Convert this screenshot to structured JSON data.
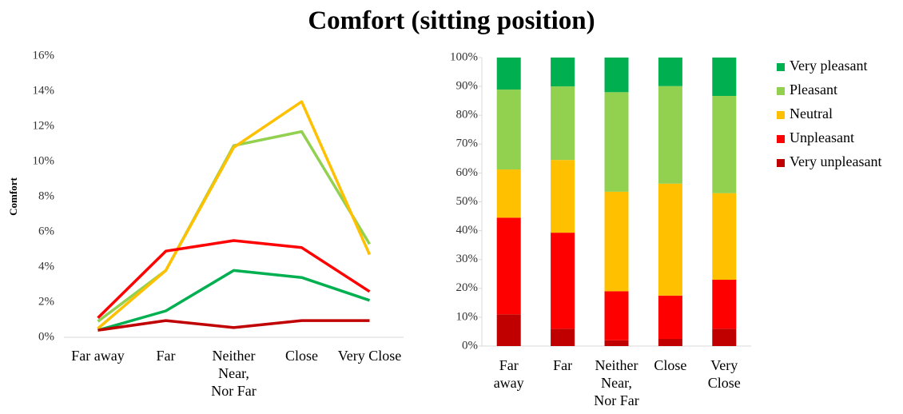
{
  "title": "Comfort (sitting position)",
  "chart_data": [
    {
      "type": "line",
      "y_label": "Comfort",
      "categories": [
        "Far away",
        "Far",
        "Neither Near, Nor Far",
        "Close",
        "Very Close"
      ],
      "ylim": [
        0,
        16
      ],
      "yticks": [
        {
          "value": 0,
          "label": "0%"
        },
        {
          "value": 2,
          "label": "2%"
        },
        {
          "value": 4,
          "label": "4%"
        },
        {
          "value": 6,
          "label": "6%"
        },
        {
          "value": 8,
          "label": "8%"
        },
        {
          "value": 10,
          "label": "10%"
        },
        {
          "value": 12,
          "label": "12%"
        },
        {
          "value": 14,
          "label": "14%"
        },
        {
          "value": 16,
          "label": "16%"
        }
      ],
      "grid": false,
      "series": [
        {
          "color": "#00b050",
          "values": [
            0.4,
            1.5,
            3.8,
            3.4,
            2.1
          ]
        },
        {
          "color": "#92d050",
          "values": [
            0.9,
            3.8,
            10.9,
            11.7,
            5.3
          ]
        },
        {
          "color": "#ffc000",
          "values": [
            0.5,
            3.8,
            10.8,
            13.4,
            4.7
          ]
        },
        {
          "color": "#ff0000",
          "values": [
            1.1,
            4.9,
            5.5,
            5.1,
            2.6
          ]
        },
        {
          "color": "#c00000",
          "values": [
            0.4,
            0.95,
            0.55,
            0.95,
            0.95
          ]
        }
      ]
    },
    {
      "type": "bar",
      "stacked": true,
      "legend": "right",
      "categories": [
        "Far away",
        "Far",
        "Neither Near, Nor Far",
        "Close",
        "Very Close"
      ],
      "ylim": [
        0,
        100
      ],
      "yticks": [
        {
          "value": 0,
          "label": "0%"
        },
        {
          "value": 10,
          "label": "10%"
        },
        {
          "value": 20,
          "label": "20%"
        },
        {
          "value": 30,
          "label": "30%"
        },
        {
          "value": 40,
          "label": "40%"
        },
        {
          "value": 50,
          "label": "50%"
        },
        {
          "value": 60,
          "label": "60%"
        },
        {
          "value": 70,
          "label": "70%"
        },
        {
          "value": 80,
          "label": "80%"
        },
        {
          "value": 90,
          "label": "90%"
        },
        {
          "value": 100,
          "label": "100%"
        }
      ],
      "series": [
        {
          "name": "Very pleasant",
          "color": "#00b050",
          "values": [
            11.1,
            10,
            12,
            9.9,
            13.3
          ]
        },
        {
          "name": "Pleasant",
          "color": "#92d050",
          "values": [
            27.7,
            25.5,
            34.5,
            33.8,
            33.7
          ]
        },
        {
          "name": "Neutral",
          "color": "#ffc000",
          "values": [
            16.7,
            25.2,
            34.5,
            38.8,
            30
          ]
        },
        {
          "name": "Unpleasant",
          "color": "#ff0000",
          "values": [
            33.5,
            33.3,
            17,
            15,
            17
          ]
        },
        {
          "name": "Very unpleasant",
          "color": "#c00000",
          "values": [
            11,
            6,
            2,
            2.5,
            6
          ]
        }
      ]
    }
  ]
}
